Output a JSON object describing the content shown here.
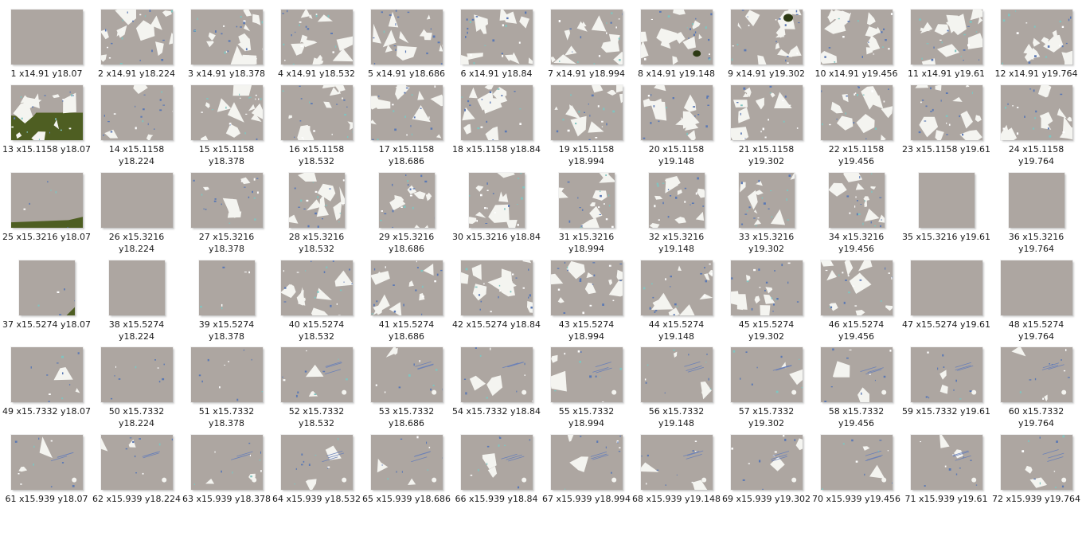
{
  "view": "thumbnail-grid",
  "colors": {
    "background": "#ffffff",
    "tile": "#ada6a1",
    "mineral": "#f4f4f0",
    "blue": "#5a78b4",
    "green": "#4e5e22"
  },
  "items": [
    {
      "name": "1 x14.91 y18.07"
    },
    {
      "name": "2 x14.91 y18.224"
    },
    {
      "name": "3 x14.91 y18.378"
    },
    {
      "name": "4 x14.91 y18.532"
    },
    {
      "name": "5 x14.91 y18.686"
    },
    {
      "name": "6 x14.91 y18.84"
    },
    {
      "name": "7 x14.91 y18.994"
    },
    {
      "name": "8 x14.91 y19.148"
    },
    {
      "name": "9 x14.91 y19.302"
    },
    {
      "name": "10 x14.91 y19.456"
    },
    {
      "name": "11 x14.91 y19.61"
    },
    {
      "name": "12 x14.91 y19.764"
    },
    {
      "name": "13 x15.1158 y18.07"
    },
    {
      "name": "14 x15.1158 y18.224"
    },
    {
      "name": "15 x15.1158 y18.378"
    },
    {
      "name": "16 x15.1158 y18.532"
    },
    {
      "name": "17 x15.1158 y18.686"
    },
    {
      "name": "18 x15.1158 y18.84"
    },
    {
      "name": "19 x15.1158 y18.994"
    },
    {
      "name": "20 x15.1158 y19.148"
    },
    {
      "name": "21 x15.1158 y19.302"
    },
    {
      "name": "22 x15.1158 y19.456"
    },
    {
      "name": "23 x15.1158 y19.61"
    },
    {
      "name": "24 x15.1158 y19.764"
    },
    {
      "name": "25 x15.3216 y18.07"
    },
    {
      "name": "26 x15.3216 y18.224"
    },
    {
      "name": "27 x15.3216 y18.378"
    },
    {
      "name": "28 x15.3216 y18.532"
    },
    {
      "name": "29 x15.3216 y18.686"
    },
    {
      "name": "30 x15.3216 y18.84"
    },
    {
      "name": "31 x15.3216 y18.994"
    },
    {
      "name": "32 x15.3216 y19.148"
    },
    {
      "name": "33 x15.3216 y19.302"
    },
    {
      "name": "34 x15.3216 y19.456"
    },
    {
      "name": "35 x15.3216 y19.61"
    },
    {
      "name": "36 x15.3216 y19.764"
    },
    {
      "name": "37 x15.5274 y18.07"
    },
    {
      "name": "38 x15.5274 y18.224"
    },
    {
      "name": "39 x15.5274 y18.378"
    },
    {
      "name": "40 x15.5274 y18.532"
    },
    {
      "name": "41 x15.5274 y18.686"
    },
    {
      "name": "42 x15.5274 y18.84"
    },
    {
      "name": "43 x15.5274 y18.994"
    },
    {
      "name": "44 x15.5274 y19.148"
    },
    {
      "name": "45 x15.5274 y19.302"
    },
    {
      "name": "46 x15.5274 y19.456"
    },
    {
      "name": "47 x15.5274 y19.61"
    },
    {
      "name": "48 x15.5274 y19.764"
    },
    {
      "name": "49 x15.7332 y18.07"
    },
    {
      "name": "50 x15.7332 y18.224"
    },
    {
      "name": "51 x15.7332 y18.378"
    },
    {
      "name": "52 x15.7332 y18.532"
    },
    {
      "name": "53 x15.7332 y18.686"
    },
    {
      "name": "54 x15.7332 y18.84"
    },
    {
      "name": "55 x15.7332 y18.994"
    },
    {
      "name": "56 x15.7332 y19.148"
    },
    {
      "name": "57 x15.7332 y19.302"
    },
    {
      "name": "58 x15.7332 y19.456"
    },
    {
      "name": "59 x15.7332 y19.61"
    },
    {
      "name": "60 x15.7332 y19.764"
    },
    {
      "name": "61 x15.939 y18.07"
    },
    {
      "name": "62 x15.939 y18.224"
    },
    {
      "name": "63 x15.939 y18.378"
    },
    {
      "name": "64 x15.939 y18.532"
    },
    {
      "name": "65 x15.939 y18.686"
    },
    {
      "name": "66 x15.939 y18.84"
    },
    {
      "name": "67 x15.939 y18.994"
    },
    {
      "name": "68 x15.939 y19.148"
    },
    {
      "name": "69 x15.939 y19.302"
    },
    {
      "name": "70 x15.939 y19.456"
    },
    {
      "name": "71 x15.939 y19.61"
    },
    {
      "name": "72 x15.939 y19.764"
    }
  ]
}
